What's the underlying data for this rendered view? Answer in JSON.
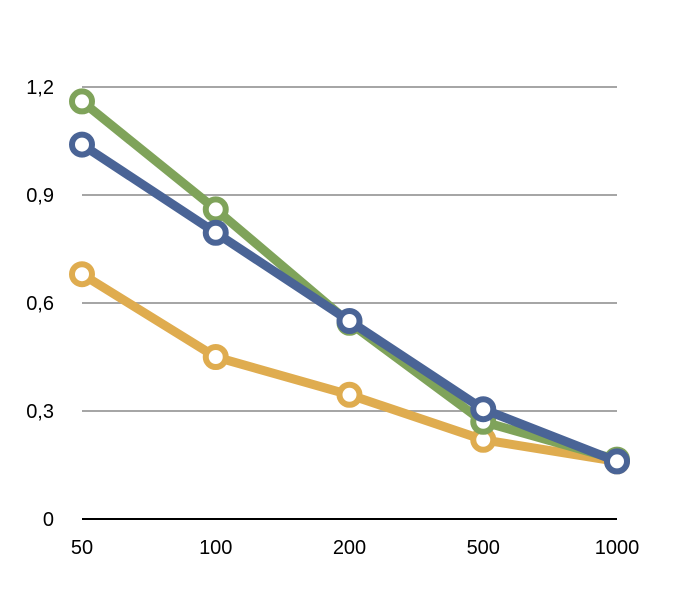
{
  "chart_data": {
    "type": "line",
    "title": "",
    "xlabel": "",
    "ylabel": "",
    "categories": [
      "50",
      "100",
      "200",
      "500",
      "1000"
    ],
    "ylim": [
      0,
      1.2
    ],
    "y_ticks": [
      "0",
      "0,3",
      "0,6",
      "0,9",
      "1,2"
    ],
    "y_tick_values": [
      0,
      0.3,
      0.6,
      0.9,
      1.2
    ],
    "grid": true,
    "legend": "none",
    "series": [
      {
        "color": "#dfac4f",
        "values": [
          0.68,
          0.45,
          0.345,
          0.22,
          0.16
        ]
      },
      {
        "color": "#7fa35a",
        "values": [
          1.16,
          0.86,
          0.545,
          0.27,
          0.165
        ]
      },
      {
        "color": "#4a6496",
        "values": [
          1.04,
          0.795,
          0.55,
          0.305,
          0.16
        ]
      }
    ]
  }
}
